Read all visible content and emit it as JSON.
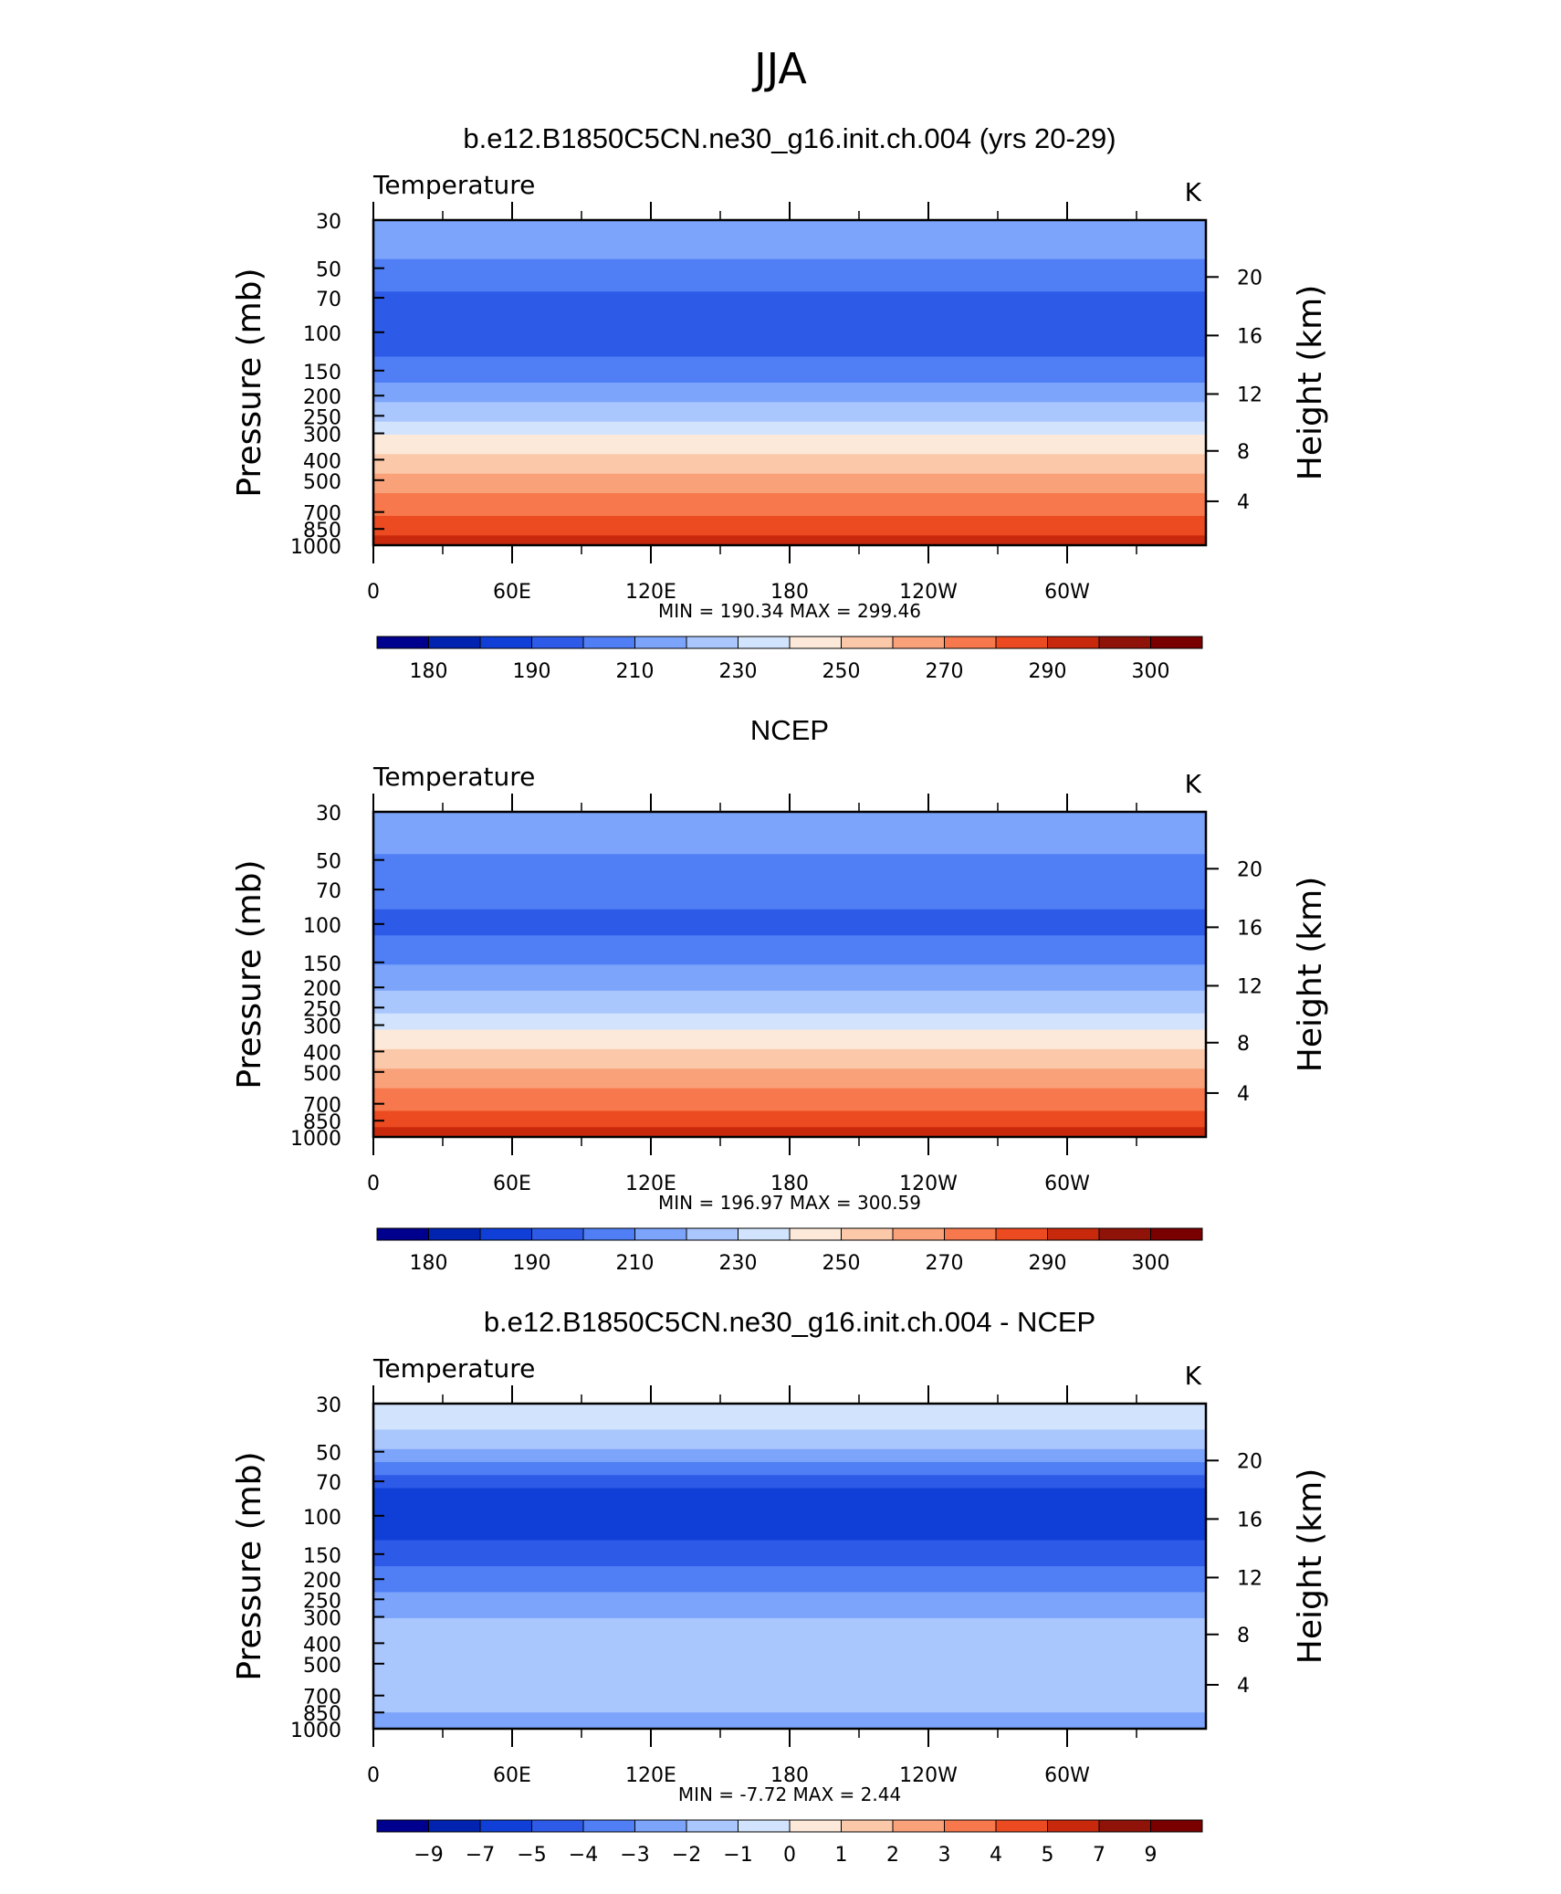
{
  "figure": {
    "title": "JJA"
  },
  "chart_data": [
    {
      "type": "heatmap",
      "title": "b.e12.B1850C5CN.ne30_g16.init.ch.004 (yrs 20-29)",
      "left_label": "Temperature",
      "units": "K",
      "ylabel": "Pressure (mb)",
      "ylabel_right": "Height (km)",
      "xticks": [
        "0",
        "60E",
        "120E",
        "180",
        "120W",
        "60W"
      ],
      "yticks": [
        "30",
        "50",
        "70",
        "100",
        "150",
        "200",
        "250",
        "300",
        "400",
        "500",
        "700",
        "850",
        "1000"
      ],
      "yticks_right": [
        "20",
        "16",
        "12",
        "8",
        "4"
      ],
      "min_label": "MIN = 190.34   MAX = 299.46",
      "colorbar": {
        "levels": [
          "180",
          "190",
          "210",
          "230",
          "250",
          "270",
          "290",
          "300"
        ],
        "colors": [
          "#00008f",
          "#0024b0",
          "#0f3fd6",
          "#2e5ae8",
          "#4f7ef5",
          "#7ca4fb",
          "#a9c6fd",
          "#d2e3fd",
          "#fde9d9",
          "#fbc8aa",
          "#f9a27a",
          "#f6784c",
          "#ec4a20",
          "#c8280c",
          "#8f1308",
          "#7a0000"
        ]
      },
      "bands": [
        {
          "from_level": 0.0,
          "to_level": 0.12,
          "color": "#7ca4fb"
        },
        {
          "from_level": 0.12,
          "to_level": 0.22,
          "color": "#4f7ef5"
        },
        {
          "from_level": 0.22,
          "to_level": 0.42,
          "color": "#2e5ae8"
        },
        {
          "from_level": 0.42,
          "to_level": 0.5,
          "color": "#4f7ef5"
        },
        {
          "from_level": 0.5,
          "to_level": 0.56,
          "color": "#7ca4fb"
        },
        {
          "from_level": 0.56,
          "to_level": 0.62,
          "color": "#a9c6fd"
        },
        {
          "from_level": 0.62,
          "to_level": 0.66,
          "color": "#d2e3fd"
        },
        {
          "from_level": 0.66,
          "to_level": 0.72,
          "color": "#fde9d9"
        },
        {
          "from_level": 0.72,
          "to_level": 0.78,
          "color": "#fbc8aa"
        },
        {
          "from_level": 0.78,
          "to_level": 0.84,
          "color": "#f9a27a"
        },
        {
          "from_level": 0.84,
          "to_level": 0.91,
          "color": "#f6784c"
        },
        {
          "from_level": 0.91,
          "to_level": 0.97,
          "color": "#ec4a20"
        },
        {
          "from_level": 0.97,
          "to_level": 1.0,
          "color": "#c8280c"
        }
      ]
    },
    {
      "type": "heatmap",
      "title": "NCEP",
      "left_label": "Temperature",
      "units": "K",
      "ylabel": "Pressure (mb)",
      "ylabel_right": "Height (km)",
      "xticks": [
        "0",
        "60E",
        "120E",
        "180",
        "120W",
        "60W"
      ],
      "yticks": [
        "30",
        "50",
        "70",
        "100",
        "150",
        "200",
        "250",
        "300",
        "400",
        "500",
        "700",
        "850",
        "1000"
      ],
      "yticks_right": [
        "20",
        "16",
        "12",
        "8",
        "4"
      ],
      "min_label": "MIN = 196.97   MAX = 300.59",
      "colorbar": {
        "levels": [
          "180",
          "190",
          "210",
          "230",
          "250",
          "270",
          "290",
          "300"
        ],
        "colors": [
          "#00008f",
          "#0024b0",
          "#0f3fd6",
          "#2e5ae8",
          "#4f7ef5",
          "#7ca4fb",
          "#a9c6fd",
          "#d2e3fd",
          "#fde9d9",
          "#fbc8aa",
          "#f9a27a",
          "#f6784c",
          "#ec4a20",
          "#c8280c",
          "#8f1308",
          "#7a0000"
        ]
      },
      "bands": [
        {
          "from_level": 0.0,
          "to_level": 0.13,
          "color": "#7ca4fb"
        },
        {
          "from_level": 0.13,
          "to_level": 0.3,
          "color": "#4f7ef5"
        },
        {
          "from_level": 0.3,
          "to_level": 0.38,
          "color": "#2e5ae8"
        },
        {
          "from_level": 0.38,
          "to_level": 0.47,
          "color": "#4f7ef5"
        },
        {
          "from_level": 0.47,
          "to_level": 0.55,
          "color": "#7ca4fb"
        },
        {
          "from_level": 0.55,
          "to_level": 0.62,
          "color": "#a9c6fd"
        },
        {
          "from_level": 0.62,
          "to_level": 0.67,
          "color": "#d2e3fd"
        },
        {
          "from_level": 0.67,
          "to_level": 0.73,
          "color": "#fde9d9"
        },
        {
          "from_level": 0.73,
          "to_level": 0.79,
          "color": "#fbc8aa"
        },
        {
          "from_level": 0.79,
          "to_level": 0.85,
          "color": "#f9a27a"
        },
        {
          "from_level": 0.85,
          "to_level": 0.92,
          "color": "#f6784c"
        },
        {
          "from_level": 0.92,
          "to_level": 0.97,
          "color": "#ec4a20"
        },
        {
          "from_level": 0.97,
          "to_level": 1.0,
          "color": "#c8280c"
        }
      ]
    },
    {
      "type": "heatmap",
      "title": "b.e12.B1850C5CN.ne30_g16.init.ch.004 - NCEP",
      "left_label": "Temperature",
      "units": "K",
      "ylabel": "Pressure (mb)",
      "ylabel_right": "Height (km)",
      "xticks": [
        "0",
        "60E",
        "120E",
        "180",
        "120W",
        "60W"
      ],
      "yticks": [
        "30",
        "50",
        "70",
        "100",
        "150",
        "200",
        "250",
        "300",
        "400",
        "500",
        "700",
        "850",
        "1000"
      ],
      "yticks_right": [
        "20",
        "16",
        "12",
        "8",
        "4"
      ],
      "min_label": "MIN =   -7.72   MAX =     2.44",
      "colorbar": {
        "levels": [
          "-9",
          "-7",
          "-5",
          "-4",
          "-3",
          "-2",
          "-1",
          "0",
          "1",
          "2",
          "3",
          "4",
          "5",
          "7",
          "9"
        ],
        "colors": [
          "#00008f",
          "#0024b0",
          "#0f3fd6",
          "#2e5ae8",
          "#4f7ef5",
          "#7ca4fb",
          "#a9c6fd",
          "#d2e3fd",
          "#fde9d9",
          "#fbc8aa",
          "#f9a27a",
          "#f6784c",
          "#ec4a20",
          "#c8280c",
          "#8f1308",
          "#7a0000"
        ]
      },
      "bands": [
        {
          "from_level": 0.0,
          "to_level": 0.08,
          "color": "#d2e3fd"
        },
        {
          "from_level": 0.08,
          "to_level": 0.14,
          "color": "#a9c6fd"
        },
        {
          "from_level": 0.14,
          "to_level": 0.18,
          "color": "#7ca4fb"
        },
        {
          "from_level": 0.18,
          "to_level": 0.22,
          "color": "#4f7ef5"
        },
        {
          "from_level": 0.22,
          "to_level": 0.26,
          "color": "#2e5ae8"
        },
        {
          "from_level": 0.26,
          "to_level": 0.42,
          "color": "#0f3fd6"
        },
        {
          "from_level": 0.42,
          "to_level": 0.5,
          "color": "#2e5ae8"
        },
        {
          "from_level": 0.5,
          "to_level": 0.58,
          "color": "#4f7ef5"
        },
        {
          "from_level": 0.58,
          "to_level": 0.66,
          "color": "#7ca4fb"
        },
        {
          "from_level": 0.66,
          "to_level": 0.95,
          "color": "#a9c6fd"
        },
        {
          "from_level": 0.95,
          "to_level": 1.0,
          "color": "#7ca4fb"
        }
      ]
    }
  ]
}
